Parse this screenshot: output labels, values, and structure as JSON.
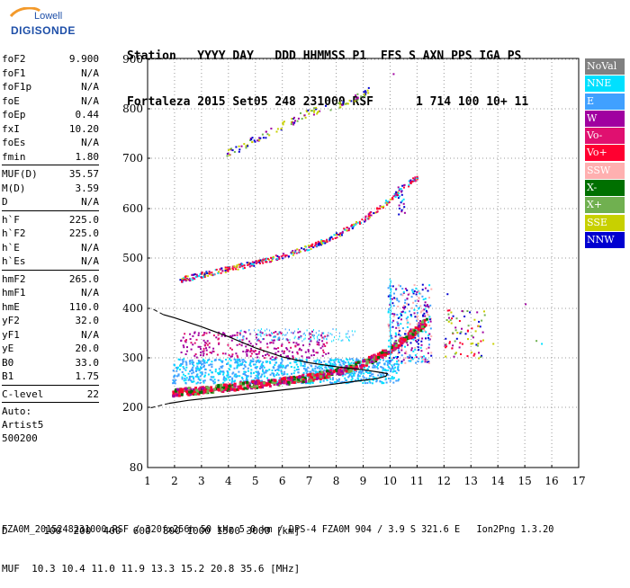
{
  "logo": {
    "line1": "Lowell",
    "line2": "DIGISONDE"
  },
  "header": {
    "labels": [
      "Station",
      "YYYY",
      "DAY",
      "DDD",
      "HHMMSS",
      "P1",
      "FFS",
      "S",
      "AXN",
      "PPS",
      "IGA",
      "PS"
    ],
    "values": [
      "Fortaleza",
      "2015",
      "Set05",
      "248",
      "231000",
      "RSF",
      "",
      "1",
      "714",
      "100",
      "10+",
      "11"
    ]
  },
  "params": [
    {
      "name": "foF2",
      "value": "9.900"
    },
    {
      "name": "foF1",
      "value": "N/A"
    },
    {
      "name": "foF1p",
      "value": "N/A"
    },
    {
      "name": "foE",
      "value": "N/A"
    },
    {
      "name": "foEp",
      "value": "0.44"
    },
    {
      "name": "fxI",
      "value": "10.20"
    },
    {
      "name": "foEs",
      "value": "N/A"
    },
    {
      "name": "fmin",
      "value": "1.80"
    },
    {
      "sep": true
    },
    {
      "name": "MUF(D)",
      "value": "35.57"
    },
    {
      "name": "M(D)",
      "value": "3.59"
    },
    {
      "name": "D",
      "value": "N/A"
    },
    {
      "sep": true
    },
    {
      "name": "h`F",
      "value": "225.0"
    },
    {
      "name": "h`F2",
      "value": "225.0"
    },
    {
      "name": "h`E",
      "value": "N/A"
    },
    {
      "name": "h`Es",
      "value": "N/A"
    },
    {
      "sep": true
    },
    {
      "name": "hmF2",
      "value": "265.0"
    },
    {
      "name": "hmF1",
      "value": "N/A"
    },
    {
      "name": "hmE",
      "value": "110.0"
    },
    {
      "name": "yF2",
      "value": "32.0"
    },
    {
      "name": "yF1",
      "value": "N/A"
    },
    {
      "name": "yE",
      "value": "20.0"
    },
    {
      "name": "B0",
      "value": "33.0"
    },
    {
      "name": "B1",
      "value": "1.75"
    },
    {
      "sep": true
    },
    {
      "name": "C-level",
      "value": "22"
    },
    {
      "sep": true
    }
  ],
  "auto": [
    "Auto:",
    "Artist5",
    "500200"
  ],
  "legend": [
    {
      "label": "NoVal",
      "color": "#808080",
      "text_color": "#ffffff"
    },
    {
      "label": "NNE",
      "color": "#00e0ff",
      "text_color": "#ffffff"
    },
    {
      "label": "E",
      "color": "#40a0ff",
      "text_color": "#ffffff"
    },
    {
      "label": "W",
      "color": "#a000a0",
      "text_color": "#ffffff"
    },
    {
      "label": "Vo-",
      "color": "#e01070",
      "text_color": "#ffffff"
    },
    {
      "label": "Vo+",
      "color": "#ff0030",
      "text_color": "#ffffff"
    },
    {
      "label": "SSW",
      "color": "#ffb0b0",
      "text_color": "#ffffff"
    },
    {
      "label": "X-",
      "color": "#007000",
      "text_color": "#ffffff"
    },
    {
      "label": "X+",
      "color": "#70b050",
      "text_color": "#ffffff"
    },
    {
      "label": "SSE",
      "color": "#c8d000",
      "text_color": "#ffffff"
    },
    {
      "label": "NNW",
      "color": "#0000d0",
      "text_color": "#ffffff"
    }
  ],
  "chart_data": {
    "type": "scatter",
    "x_ticks": [
      "1",
      "2",
      "3",
      "4",
      "5",
      "6",
      "7",
      "8",
      "9",
      "10",
      "11",
      "12",
      "13",
      "14",
      "15",
      "16",
      "17"
    ],
    "y_ticks": [
      "80",
      "200",
      "300",
      "400",
      "500",
      "600",
      "700",
      "800",
      "900"
    ],
    "xlim": [
      1,
      17
    ],
    "ylim": [
      80,
      900
    ],
    "grid": "dotted",
    "traces": [
      {
        "name": "F-trace",
        "points": [
          [
            1.9,
            232
          ],
          [
            2.2,
            233
          ],
          [
            2.6,
            235
          ],
          [
            3,
            237
          ],
          [
            3.5,
            240
          ],
          [
            4,
            243
          ],
          [
            4.5,
            246
          ],
          [
            5,
            249
          ],
          [
            5.5,
            252
          ],
          [
            6,
            255
          ],
          [
            6.5,
            259
          ],
          [
            7,
            263
          ],
          [
            7.5,
            268
          ],
          [
            8,
            274
          ],
          [
            8.5,
            282
          ],
          [
            9,
            292
          ],
          [
            9.5,
            305
          ],
          [
            10,
            320
          ],
          [
            10.5,
            340
          ],
          [
            11,
            360
          ],
          [
            11.3,
            375
          ]
        ]
      },
      {
        "name": "F-2hop",
        "points": [
          [
            2.2,
            458
          ],
          [
            2.6,
            463
          ],
          [
            3,
            468
          ],
          [
            3.5,
            474
          ],
          [
            4,
            480
          ],
          [
            4.5,
            486
          ],
          [
            5,
            492
          ],
          [
            5.5,
            499
          ],
          [
            6,
            506
          ],
          [
            6.5,
            514
          ],
          [
            7,
            524
          ],
          [
            7.5,
            535
          ],
          [
            8,
            548
          ],
          [
            8.5,
            563
          ],
          [
            9,
            580
          ],
          [
            9.5,
            600
          ],
          [
            10,
            620
          ],
          [
            10.5,
            645
          ],
          [
            11,
            665
          ]
        ]
      },
      {
        "name": "F-3hop",
        "points": [
          [
            3.9,
            710
          ],
          [
            4.3,
            720
          ],
          [
            4.8,
            735
          ],
          [
            5.3,
            748
          ],
          [
            5.8,
            762
          ],
          [
            6.3,
            775
          ],
          [
            6.8,
            790
          ],
          [
            7.4,
            800
          ],
          [
            8,
            808
          ],
          [
            8.5,
            818
          ],
          [
            9,
            832
          ],
          [
            9.2,
            842
          ]
        ]
      }
    ],
    "profile": [
      [
        1.8,
        208
      ],
      [
        2.5,
        214
      ],
      [
        3.5,
        220
      ],
      [
        4.5,
        226
      ],
      [
        5.5,
        232
      ],
      [
        6.5,
        238
      ],
      [
        7.5,
        244
      ],
      [
        8.5,
        251
      ],
      [
        9.5,
        258
      ],
      [
        9.85,
        263
      ],
      [
        9.9,
        268
      ],
      [
        9.7,
        270
      ],
      [
        9,
        276
      ],
      [
        8,
        282
      ],
      [
        7,
        290
      ],
      [
        6,
        302
      ],
      [
        5,
        320
      ],
      [
        4,
        343
      ],
      [
        3,
        363
      ],
      [
        2,
        381
      ],
      [
        1.6,
        387
      ]
    ],
    "mhz_scale": {
      "D": [
        "100",
        "200",
        "400",
        "600",
        "800",
        "1000",
        "1500",
        "3000",
        "[km]"
      ],
      "MUF": [
        "10.3",
        "10.4",
        "11.0",
        "11.9",
        "13.3",
        "15.2",
        "20.8",
        "35.6",
        "[MHz]"
      ]
    }
  },
  "footer_info": "FZA0M_2015248231000.RSF / 320fx256h 50 kHz 5.0 km / DPS-4 FZA0M 904 / 3.9 S 321.6 E   Ion2Png 1.3.20"
}
